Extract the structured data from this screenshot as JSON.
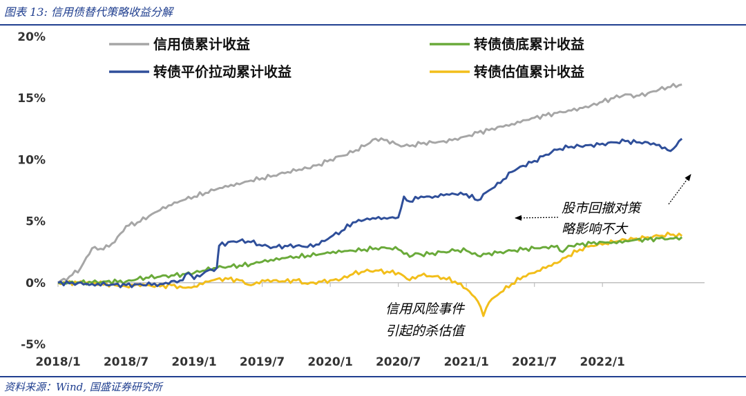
{
  "figure_title": "图表 13:  信用债替代策略收益分解",
  "source": "资料来源：Wind, 国盛证券研究所",
  "colors": {
    "accent": "#1f3e8f",
    "credit": "#a6a6a6",
    "bond_floor": "#6aaa3a",
    "parity": "#2f4f9a",
    "valuation": "#f2be1a",
    "axis": "#333333"
  },
  "annotations": {
    "pullback_line1": "股市回撤对策",
    "pullback_line2": "略影响不大",
    "credit_line1": "信用风险事件",
    "credit_line2": "引起的杀估值"
  },
  "chart_data": {
    "type": "line",
    "title": "",
    "xlabel": "",
    "ylabel": "",
    "ylim": [
      -0.05,
      0.2
    ],
    "xlim": [
      0,
      57
    ],
    "x_tick_labels": [
      "2018/1",
      "2018/7",
      "2019/1",
      "2019/7",
      "2020/1",
      "2020/7",
      "2021/1",
      "2021/7",
      "2022/1"
    ],
    "x_tick_values": [
      0,
      6,
      12,
      18,
      24,
      30,
      36,
      42,
      48
    ],
    "y_tick_labels": [
      "-5%",
      "0%",
      "5%",
      "10%",
      "15%",
      "20%"
    ],
    "y_tick_values": [
      -0.05,
      0,
      0.05,
      0.1,
      0.15,
      0.2
    ],
    "legend_position": "top",
    "series": [
      {
        "name": "信用债累计收益",
        "color_key": "credit",
        "points": [
          [
            0,
            0.0
          ],
          [
            1,
            0.005
          ],
          [
            2,
            0.012
          ],
          [
            3,
            0.028
          ],
          [
            4,
            0.027
          ],
          [
            5,
            0.033
          ],
          [
            6,
            0.046
          ],
          [
            7,
            0.049
          ],
          [
            8,
            0.054
          ],
          [
            9,
            0.059
          ],
          [
            10,
            0.063
          ],
          [
            11,
            0.067
          ],
          [
            12,
            0.07
          ],
          [
            13,
            0.073
          ],
          [
            14,
            0.076
          ],
          [
            15,
            0.078
          ],
          [
            16,
            0.08
          ],
          [
            17,
            0.083
          ],
          [
            18,
            0.085
          ],
          [
            19,
            0.087
          ],
          [
            20,
            0.089
          ],
          [
            21,
            0.091
          ],
          [
            22,
            0.093
          ],
          [
            23,
            0.096
          ],
          [
            24,
            0.1
          ],
          [
            25,
            0.103
          ],
          [
            26,
            0.106
          ],
          [
            27,
            0.111
          ],
          [
            28,
            0.117
          ],
          [
            29,
            0.116
          ],
          [
            30,
            0.112
          ],
          [
            31,
            0.111
          ],
          [
            32,
            0.113
          ],
          [
            33,
            0.114
          ],
          [
            34,
            0.115
          ],
          [
            35,
            0.117
          ],
          [
            36,
            0.119
          ],
          [
            37,
            0.122
          ],
          [
            38,
            0.124
          ],
          [
            39,
            0.127
          ],
          [
            40,
            0.129
          ],
          [
            41,
            0.132
          ],
          [
            42,
            0.134
          ],
          [
            43,
            0.136
          ],
          [
            44,
            0.138
          ],
          [
            45,
            0.14
          ],
          [
            46,
            0.142
          ],
          [
            47,
            0.144
          ],
          [
            48,
            0.147
          ],
          [
            49,
            0.15
          ],
          [
            50,
            0.153
          ],
          [
            51,
            0.152
          ],
          [
            52,
            0.154
          ],
          [
            53,
            0.157
          ],
          [
            54,
            0.159
          ],
          [
            55,
            0.161
          ]
        ]
      },
      {
        "name": "转债债底累计收益",
        "color_key": "bond_floor",
        "points": [
          [
            0,
            0.0
          ],
          [
            2,
            0.0
          ],
          [
            4,
            0.001
          ],
          [
            6,
            0.001
          ],
          [
            7,
            0.003
          ],
          [
            8,
            0.004
          ],
          [
            9,
            0.005
          ],
          [
            10,
            0.006
          ],
          [
            11,
            0.007
          ],
          [
            12,
            0.008
          ],
          [
            13,
            0.01
          ],
          [
            14,
            0.012
          ],
          [
            15,
            0.013
          ],
          [
            16,
            0.014
          ],
          [
            17,
            0.015
          ],
          [
            18,
            0.017
          ],
          [
            19,
            0.018
          ],
          [
            20,
            0.02
          ],
          [
            21,
            0.021
          ],
          [
            22,
            0.022
          ],
          [
            23,
            0.023
          ],
          [
            24,
            0.024
          ],
          [
            25,
            0.025
          ],
          [
            26,
            0.026
          ],
          [
            27,
            0.027
          ],
          [
            28,
            0.028
          ],
          [
            29,
            0.028
          ],
          [
            30,
            0.027
          ],
          [
            31,
            0.021
          ],
          [
            31.5,
            0.024
          ],
          [
            32,
            0.023
          ],
          [
            33,
            0.024
          ],
          [
            34,
            0.025
          ],
          [
            35,
            0.026
          ],
          [
            36,
            0.026
          ],
          [
            37,
            0.022
          ],
          [
            38,
            0.024
          ],
          [
            39,
            0.025
          ],
          [
            40,
            0.026
          ],
          [
            41,
            0.027
          ],
          [
            42,
            0.028
          ],
          [
            43,
            0.029
          ],
          [
            44,
            0.03
          ],
          [
            44.5,
            0.025
          ],
          [
            45,
            0.03
          ],
          [
            46,
            0.031
          ],
          [
            47,
            0.032
          ],
          [
            48,
            0.033
          ],
          [
            49,
            0.033
          ],
          [
            50,
            0.034
          ],
          [
            51,
            0.035
          ],
          [
            52,
            0.035
          ],
          [
            53,
            0.036
          ],
          [
            54,
            0.036
          ],
          [
            55,
            0.037
          ]
        ]
      },
      {
        "name": "转债平价拉动累计收益",
        "color_key": "parity",
        "points": [
          [
            0,
            0.0
          ],
          [
            3,
            -0.001
          ],
          [
            6,
            -0.002
          ],
          [
            9,
            -0.001
          ],
          [
            11,
            0.002
          ],
          [
            11.5,
            0.008
          ],
          [
            12,
            0.003
          ],
          [
            13,
            0.009
          ],
          [
            14,
            0.012
          ],
          [
            14.2,
            0.03
          ],
          [
            15,
            0.033
          ],
          [
            16,
            0.034
          ],
          [
            17,
            0.033
          ],
          [
            18,
            0.03
          ],
          [
            19,
            0.029
          ],
          [
            20,
            0.03
          ],
          [
            21,
            0.03
          ],
          [
            22,
            0.029
          ],
          [
            23,
            0.031
          ],
          [
            24,
            0.037
          ],
          [
            25,
            0.042
          ],
          [
            26,
            0.049
          ],
          [
            27,
            0.051
          ],
          [
            28,
            0.052
          ],
          [
            29,
            0.052
          ],
          [
            30,
            0.053
          ],
          [
            30.5,
            0.07
          ],
          [
            31,
            0.066
          ],
          [
            32,
            0.07
          ],
          [
            33,
            0.069
          ],
          [
            34,
            0.071
          ],
          [
            35,
            0.072
          ],
          [
            36,
            0.072
          ],
          [
            37,
            0.067
          ],
          [
            38,
            0.075
          ],
          [
            39,
            0.081
          ],
          [
            40,
            0.09
          ],
          [
            41,
            0.095
          ],
          [
            42,
            0.099
          ],
          [
            43,
            0.104
          ],
          [
            44,
            0.108
          ],
          [
            45,
            0.11
          ],
          [
            46,
            0.111
          ],
          [
            47,
            0.112
          ],
          [
            48,
            0.113
          ],
          [
            49,
            0.114
          ],
          [
            50,
            0.115
          ],
          [
            51,
            0.114
          ],
          [
            52,
            0.114
          ],
          [
            53,
            0.112
          ],
          [
            54,
            0.107
          ],
          [
            55,
            0.117
          ]
        ]
      },
      {
        "name": "转债估值累计收益",
        "color_key": "valuation",
        "points": [
          [
            0,
            0.0
          ],
          [
            3,
            0.0
          ],
          [
            5,
            -0.002
          ],
          [
            6,
            -0.003
          ],
          [
            7,
            -0.001
          ],
          [
            8,
            -0.002
          ],
          [
            9,
            -0.003
          ],
          [
            10,
            -0.002
          ],
          [
            11,
            -0.004
          ],
          [
            12,
            -0.003
          ],
          [
            13,
            0.001
          ],
          [
            14,
            0.003
          ],
          [
            15,
            0.003
          ],
          [
            16,
            0.002
          ],
          [
            17,
            -0.002
          ],
          [
            18,
            0.002
          ],
          [
            19,
            0.002
          ],
          [
            20,
            0.001
          ],
          [
            21,
            0.002
          ],
          [
            22,
            -0.001
          ],
          [
            23,
            0.001
          ],
          [
            24,
            0.002
          ],
          [
            25,
            0.003
          ],
          [
            26,
            0.007
          ],
          [
            27,
            0.009
          ],
          [
            28,
            0.01
          ],
          [
            29,
            0.009
          ],
          [
            30,
            0.008
          ],
          [
            31,
            0.002
          ],
          [
            32,
            0.006
          ],
          [
            33,
            0.005
          ],
          [
            34,
            0.004
          ],
          [
            35,
            0.001
          ],
          [
            36,
            -0.005
          ],
          [
            37,
            -0.015
          ],
          [
            37.5,
            -0.027
          ],
          [
            38,
            -0.016
          ],
          [
            39,
            -0.008
          ],
          [
            40,
            -0.001
          ],
          [
            41,
            0.005
          ],
          [
            42,
            0.008
          ],
          [
            43,
            0.012
          ],
          [
            44,
            0.016
          ],
          [
            45,
            0.022
          ],
          [
            46,
            0.027
          ],
          [
            47,
            0.03
          ],
          [
            48,
            0.031
          ],
          [
            49,
            0.033
          ],
          [
            50,
            0.035
          ],
          [
            51,
            0.036
          ],
          [
            52,
            0.037
          ],
          [
            53,
            0.038
          ],
          [
            54,
            0.039
          ],
          [
            55,
            0.038
          ]
        ]
      }
    ]
  }
}
